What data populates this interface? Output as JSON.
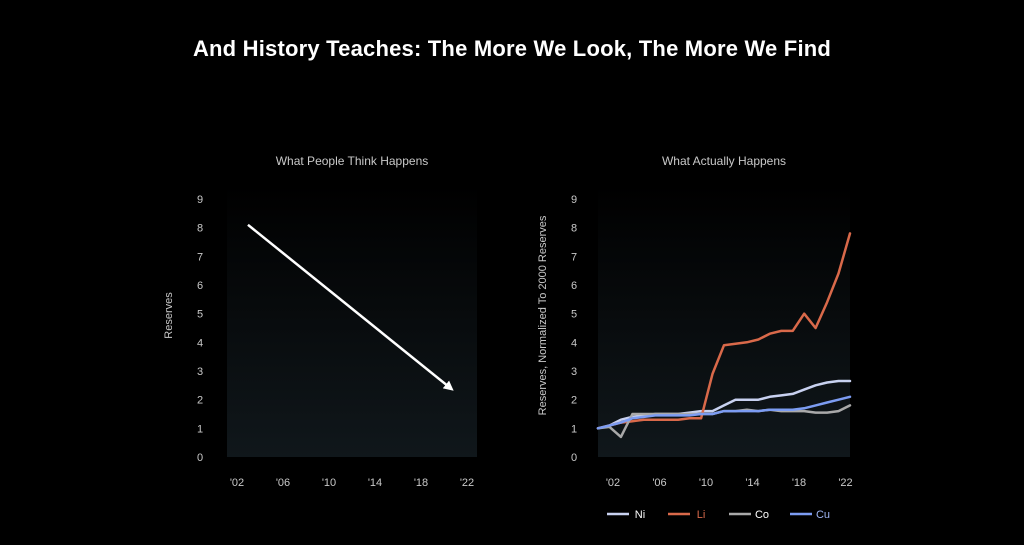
{
  "title": "And History Teaches: The More We Look, The More We Find",
  "colors": {
    "background": "#000000",
    "text": "#ffffff",
    "muted_text": "#c9c9c9",
    "Ni": "#c8d1f0",
    "Li": "#d9694a",
    "Co": "#a9a9a9",
    "Cu": "#7c9cf2",
    "arrow": "#ffffff"
  },
  "chart_data": [
    {
      "type": "line",
      "title": "What People Think Happens",
      "ylabel": "Reserves",
      "xlabel": "",
      "ylim": [
        0,
        9
      ],
      "yticks": [
        "0",
        "1",
        "2",
        "3",
        "4",
        "5",
        "6",
        "7",
        "8",
        "9"
      ],
      "xticks": [
        "'02",
        "'06",
        "'10",
        "'14",
        "'18",
        "'22"
      ],
      "xlim": [
        2002,
        2023
      ],
      "grid": false,
      "series": [
        {
          "style": "arrow",
          "x": [
            2002.5,
            2021.2
          ],
          "values": [
            8.1,
            2.4
          ]
        }
      ]
    },
    {
      "type": "line",
      "title": "What Actually Happens",
      "ylabel": "Reserves, Normalized To 2000 Reserves",
      "xlabel": "",
      "ylim": [
        0,
        9
      ],
      "yticks": [
        "0",
        "1",
        "2",
        "3",
        "4",
        "5",
        "6",
        "7",
        "8",
        "9"
      ],
      "xticks": [
        "'02",
        "'06",
        "'10",
        "'14",
        "'18",
        "'22"
      ],
      "xlim": [
        2000,
        2022
      ],
      "grid": false,
      "legend": "bottom",
      "x": [
        2000,
        2001,
        2002,
        2003,
        2004,
        2005,
        2006,
        2007,
        2008,
        2009,
        2010,
        2011,
        2012,
        2013,
        2014,
        2015,
        2016,
        2017,
        2018,
        2019,
        2020,
        2021,
        2022
      ],
      "series": [
        {
          "name": "Ni",
          "values": [
            1.0,
            1.1,
            1.3,
            1.4,
            1.45,
            1.5,
            1.5,
            1.5,
            1.55,
            1.6,
            1.6,
            1.8,
            2.0,
            2.0,
            2.0,
            2.1,
            2.15,
            2.2,
            2.35,
            2.5,
            2.6,
            2.65,
            2.65
          ]
        },
        {
          "name": "Li",
          "values": [
            1.0,
            1.1,
            1.2,
            1.25,
            1.3,
            1.3,
            1.3,
            1.3,
            1.35,
            1.35,
            2.9,
            3.9,
            3.95,
            4.0,
            4.1,
            4.3,
            4.4,
            4.4,
            5.0,
            4.5,
            5.4,
            6.4,
            7.8
          ]
        },
        {
          "name": "Co",
          "values": [
            1.0,
            1.05,
            0.7,
            1.5,
            1.5,
            1.5,
            1.5,
            1.5,
            1.5,
            1.5,
            1.5,
            1.6,
            1.6,
            1.65,
            1.6,
            1.65,
            1.6,
            1.6,
            1.6,
            1.55,
            1.55,
            1.6,
            1.8
          ]
        },
        {
          "name": "Cu",
          "values": [
            1.0,
            1.1,
            1.2,
            1.35,
            1.4,
            1.45,
            1.45,
            1.45,
            1.45,
            1.5,
            1.5,
            1.6,
            1.6,
            1.6,
            1.6,
            1.65,
            1.65,
            1.65,
            1.7,
            1.8,
            1.9,
            2.0,
            2.1
          ]
        }
      ]
    }
  ]
}
